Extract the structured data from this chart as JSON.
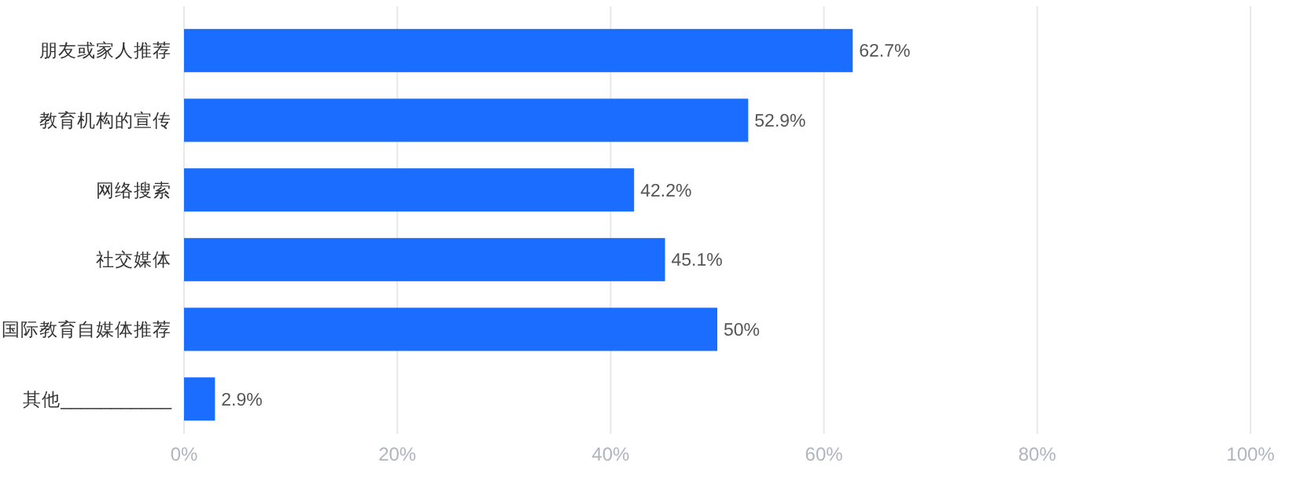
{
  "chart_data": {
    "type": "bar",
    "orientation": "horizontal",
    "categories": [
      "朋友或家人推荐",
      "教育机构的宣传",
      "网络搜索",
      "社交媒体",
      "国际教育自媒体推荐",
      "其他___________"
    ],
    "values": [
      62.7,
      52.9,
      42.2,
      45.1,
      50,
      2.9
    ],
    "value_labels": [
      "62.7%",
      "52.9%",
      "42.2%",
      "45.1%",
      "50%",
      "2.9%"
    ],
    "color": "#1a6dff",
    "xlim": [
      0,
      100
    ],
    "xticks": [
      {
        "value": 0,
        "label": "0%"
      },
      {
        "value": 20,
        "label": "20%"
      },
      {
        "value": 40,
        "label": "40%"
      },
      {
        "value": 60,
        "label": "60%"
      },
      {
        "value": 80,
        "label": "80%"
      },
      {
        "value": 100,
        "label": "100%"
      }
    ],
    "grid": "x"
  }
}
